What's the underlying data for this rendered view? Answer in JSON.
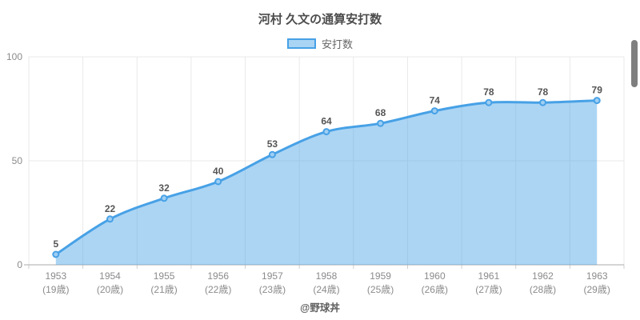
{
  "footer": {
    "credit": "@野球丼"
  },
  "chart_data": {
    "type": "area",
    "title": "河村 久文の通算安打数",
    "categories": [
      "1953",
      "1954",
      "1955",
      "1956",
      "1957",
      "1958",
      "1959",
      "1960",
      "1961",
      "1962",
      "1963"
    ],
    "category_sublabels": [
      "(19歳)",
      "(20歳)",
      "(21歳)",
      "(22歳)",
      "(23歳)",
      "(24歳)",
      "(25歳)",
      "(26歳)",
      "(27歳)",
      "(28歳)",
      "(29歳)"
    ],
    "series": [
      {
        "name": "安打数",
        "values": [
          5,
          22,
          32,
          40,
          53,
          64,
          68,
          74,
          78,
          78,
          79
        ]
      }
    ],
    "xlabel": "",
    "ylabel": "",
    "ylim": [
      0,
      100
    ],
    "yticks": [
      0,
      50,
      100
    ],
    "grid": true,
    "smooth": true,
    "legend_position": "top",
    "colors": {
      "line": "#47a1e6",
      "area": "#a9d4f3",
      "point_fill": "#9fcef2",
      "grid": "#e9e9e9",
      "axis": "#ababab",
      "tick": "#cfcfcf",
      "title_text": "#4d4d4d",
      "legend_text": "#666666",
      "value_label": "#555555",
      "axis_label": "#8b8b8b",
      "credit_text": "#5f5f5f",
      "scrollbar": "#7f7f7f"
    }
  }
}
